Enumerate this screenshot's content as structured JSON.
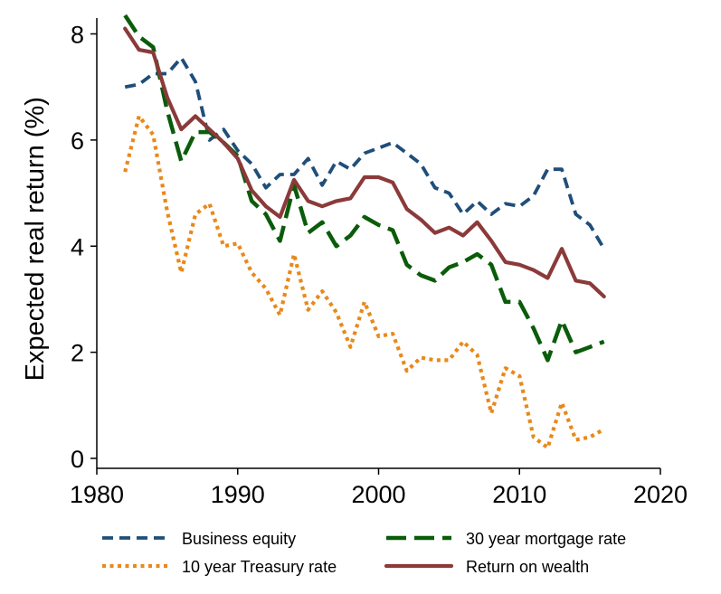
{
  "chart_data": {
    "type": "line",
    "xlabel": "",
    "ylabel": "Expected real return (%)",
    "xlim": [
      1980,
      2020
    ],
    "ylim": [
      0,
      8
    ],
    "xticks": [
      1980,
      1990,
      2000,
      2010,
      2020
    ],
    "yticks": [
      0,
      2,
      4,
      6,
      8
    ],
    "grid": false,
    "legend_position": "bottom",
    "series": [
      {
        "name": "Business equity",
        "color": "#1f4e79",
        "style": "dash",
        "x": [
          1982,
          1983,
          1984,
          1985,
          1986,
          1987,
          1988,
          1989,
          1990,
          1991,
          1992,
          1993,
          1994,
          1995,
          1996,
          1997,
          1998,
          1999,
          2000,
          2001,
          2002,
          2003,
          2004,
          2005,
          2006,
          2007,
          2008,
          2009,
          2010,
          2011,
          2012,
          2013,
          2014,
          2015,
          2016
        ],
        "y": [
          7.0,
          7.05,
          7.25,
          7.25,
          7.55,
          7.1,
          6.0,
          6.2,
          5.8,
          5.55,
          5.1,
          5.35,
          5.35,
          5.65,
          5.15,
          5.6,
          5.45,
          5.75,
          5.85,
          5.95,
          5.75,
          5.55,
          5.1,
          5.0,
          4.6,
          4.85,
          4.6,
          4.8,
          4.75,
          4.95,
          5.45,
          5.45,
          4.6,
          4.4,
          3.95
        ]
      },
      {
        "name": "30 year mortgage rate",
        "color": "#0a5c0a",
        "style": "longdash",
        "x": [
          1982,
          1983,
          1984,
          1985,
          1986,
          1987,
          1988,
          1989,
          1990,
          1991,
          1992,
          1993,
          1994,
          1995,
          1996,
          1997,
          1998,
          1999,
          2000,
          2001,
          2002,
          2003,
          2004,
          2005,
          2006,
          2007,
          2008,
          2009,
          2010,
          2011,
          2012,
          2013,
          2014,
          2015,
          2016
        ],
        "y": [
          8.35,
          7.95,
          7.75,
          6.55,
          5.6,
          6.15,
          6.15,
          5.95,
          5.7,
          4.85,
          4.6,
          4.1,
          5.15,
          4.25,
          4.45,
          4.0,
          4.2,
          4.55,
          4.4,
          4.3,
          3.65,
          3.45,
          3.35,
          3.6,
          3.7,
          3.85,
          3.65,
          2.95,
          2.95,
          2.45,
          1.85,
          2.6,
          2.0,
          2.1,
          2.2
        ]
      },
      {
        "name": "10 year Treasury rate",
        "color": "#e8891a",
        "style": "dot",
        "x": [
          1982,
          1983,
          1984,
          1985,
          1986,
          1987,
          1988,
          1989,
          1990,
          1991,
          1992,
          1993,
          1994,
          1995,
          1996,
          1997,
          1998,
          1999,
          2000,
          2001,
          2002,
          2003,
          2004,
          2005,
          2006,
          2007,
          2008,
          2009,
          2010,
          2011,
          2012,
          2013,
          2014,
          2015,
          2016
        ],
        "y": [
          5.4,
          6.45,
          6.1,
          4.65,
          3.5,
          4.6,
          4.8,
          4.0,
          4.05,
          3.5,
          3.2,
          2.7,
          3.85,
          2.8,
          3.15,
          2.75,
          2.1,
          2.95,
          2.3,
          2.35,
          1.65,
          1.9,
          1.85,
          1.85,
          2.2,
          1.95,
          0.85,
          1.7,
          1.55,
          0.4,
          0.2,
          1.05,
          0.35,
          0.4,
          0.55
        ]
      },
      {
        "name": "Return on wealth",
        "color": "#8b3a3a",
        "style": "solid",
        "x": [
          1982,
          1983,
          1984,
          1985,
          1986,
          1987,
          1988,
          1989,
          1990,
          1991,
          1992,
          1993,
          1994,
          1995,
          1996,
          1997,
          1998,
          1999,
          2000,
          2001,
          2002,
          2003,
          2004,
          2005,
          2006,
          2007,
          2008,
          2009,
          2010,
          2011,
          2012,
          2013,
          2014,
          2015,
          2016
        ],
        "y": [
          8.1,
          7.7,
          7.65,
          6.8,
          6.2,
          6.45,
          6.2,
          5.95,
          5.65,
          5.05,
          4.75,
          4.55,
          5.25,
          4.85,
          4.75,
          4.85,
          4.9,
          5.3,
          5.3,
          5.2,
          4.7,
          4.5,
          4.25,
          4.35,
          4.2,
          4.45,
          4.1,
          3.7,
          3.65,
          3.55,
          3.4,
          3.95,
          3.35,
          3.3,
          3.05
        ]
      }
    ],
    "legend": [
      {
        "series": 0,
        "label": "Business equity"
      },
      {
        "series": 1,
        "label": "30 year mortgage rate"
      },
      {
        "series": 2,
        "label": "10 year Treasury rate"
      },
      {
        "series": 3,
        "label": "Return on wealth"
      }
    ]
  }
}
